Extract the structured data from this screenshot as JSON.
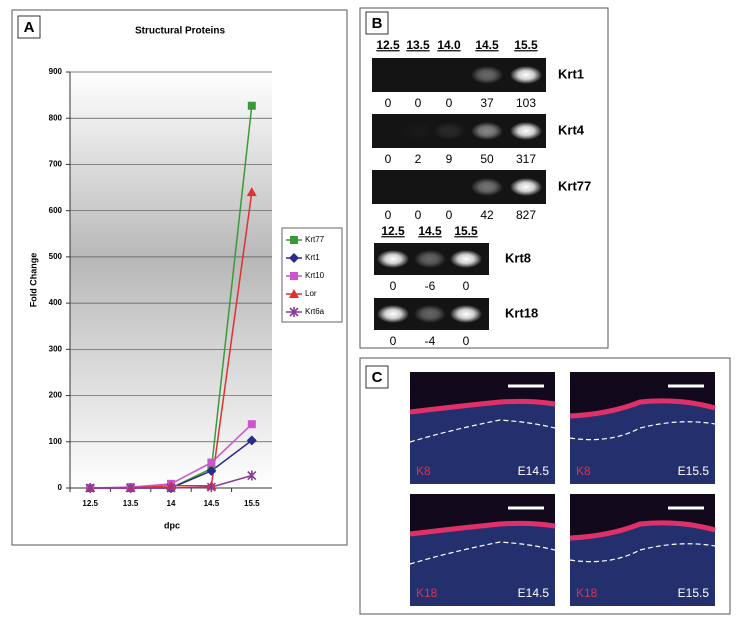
{
  "panel_labels": [
    "A",
    "B",
    "C"
  ],
  "chart_data": {
    "type": "line",
    "title": "Structural Proteins",
    "x_label": "dpc",
    "y_label": "Fold Change",
    "categories": [
      "12.5",
      "13.5",
      "14",
      "14.5",
      "15.5"
    ],
    "ylim": [
      0,
      900
    ],
    "yticks": [
      0,
      100,
      200,
      300,
      400,
      500,
      600,
      700,
      800,
      900
    ],
    "grid": true,
    "series": [
      {
        "name": "Krt77",
        "color": "#3a9a3a",
        "marker": "square",
        "values": [
          0,
          0,
          0,
          42,
          827
        ]
      },
      {
        "name": "Krt1",
        "color": "#2b2b8c",
        "marker": "diamond",
        "values": [
          0,
          0,
          0,
          37,
          103
        ]
      },
      {
        "name": "Krt10",
        "color": "#cc55cc",
        "marker": "square",
        "values": [
          0,
          2,
          9,
          55,
          138
        ]
      },
      {
        "name": "Lor",
        "color": "#e03030",
        "marker": "triangle",
        "values": [
          0,
          0,
          5,
          5,
          640
        ]
      },
      {
        "name": "Krt6a",
        "color": "#8a3a9a",
        "marker": "star",
        "values": [
          0,
          0,
          0,
          2,
          27
        ]
      }
    ]
  },
  "gels": {
    "groups": [
      {
        "lanes": [
          "12.5",
          "13.5",
          "14.0",
          "14.5",
          "15.5"
        ],
        "rows": [
          {
            "label": "Krt1",
            "values": [
              0,
              0,
              0,
              37,
              103
            ]
          },
          {
            "label": "Krt4",
            "values": [
              0,
              2,
              9,
              50,
              317
            ]
          },
          {
            "label": "Krt77",
            "values": [
              0,
              0,
              0,
              42,
              827
            ]
          }
        ]
      },
      {
        "lanes": [
          "12.5",
          "14.5",
          "15.5"
        ],
        "rows": [
          {
            "label": "Krt8",
            "values": [
              0,
              -6,
              0
            ]
          },
          {
            "label": "Krt18",
            "values": [
              0,
              -4,
              0
            ]
          }
        ]
      }
    ]
  },
  "micrographs": [
    {
      "marker": "K8",
      "stage": "E14.5"
    },
    {
      "marker": "K8",
      "stage": "E15.5"
    },
    {
      "marker": "K18",
      "stage": "E14.5"
    },
    {
      "marker": "K18",
      "stage": "E15.5"
    }
  ]
}
